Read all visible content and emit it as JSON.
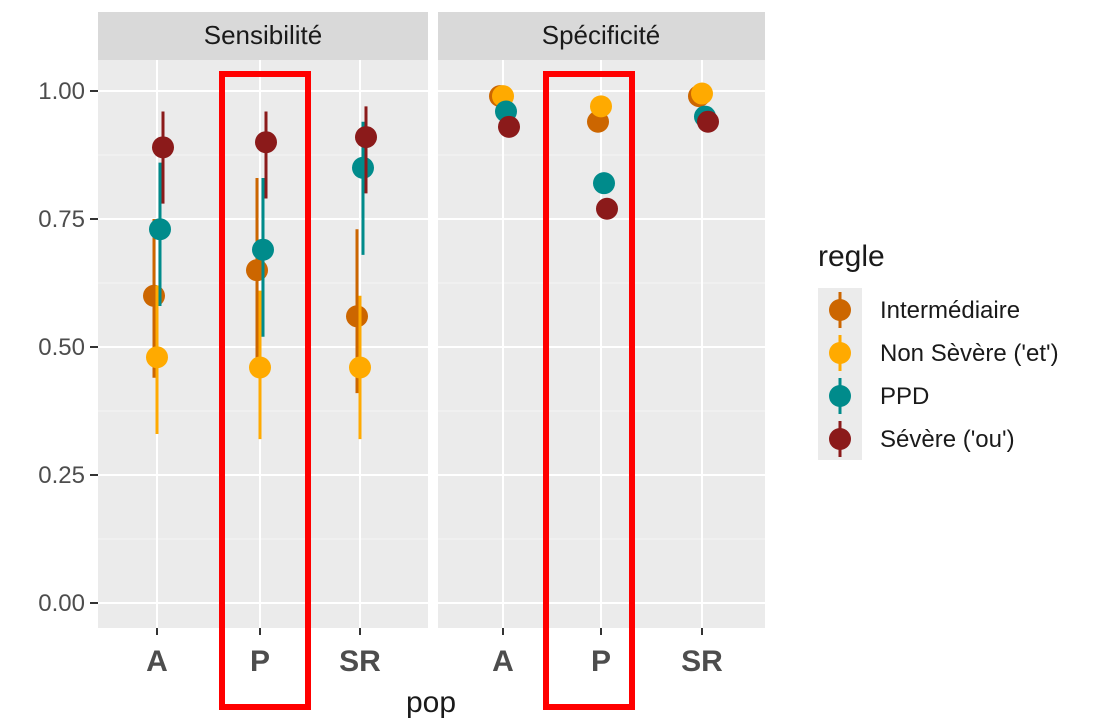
{
  "chart_data": {
    "type": "scatter",
    "facets": [
      "Sensibilité",
      "Spécificité"
    ],
    "categories": [
      "A",
      "P",
      "SR"
    ],
    "xlabel": "pop",
    "ylim": [
      0,
      1.1
    ],
    "yticks": [
      "0.00",
      "0.25",
      "0.50",
      "0.75",
      "1.00"
    ],
    "legend": {
      "title": "regle",
      "placement": "right"
    },
    "grid": true,
    "highlight": {
      "category": "P",
      "color": "#ff0000"
    },
    "series": [
      {
        "name": "Intermédiaire",
        "color": "#cc6600",
        "points": {
          "Sensibilité": [
            {
              "x": "A",
              "y": 0.6,
              "lo": 0.44,
              "hi": 0.75
            },
            {
              "x": "P",
              "y": 0.65,
              "lo": 0.46,
              "hi": 0.83
            },
            {
              "x": "SR",
              "y": 0.56,
              "lo": 0.41,
              "hi": 0.73
            }
          ],
          "Spécificité": [
            {
              "x": "A",
              "y": 0.99,
              "lo": 0.98,
              "hi": 1.0
            },
            {
              "x": "P",
              "y": 0.94,
              "lo": 0.92,
              "hi": 0.95
            },
            {
              "x": "SR",
              "y": 0.99,
              "lo": 0.98,
              "hi": 1.0
            }
          ]
        }
      },
      {
        "name": "Non Sèvère ('et')",
        "color": "#ffaa00",
        "points": {
          "Sensibilité": [
            {
              "x": "A",
              "y": 0.48,
              "lo": 0.33,
              "hi": 0.62
            },
            {
              "x": "P",
              "y": 0.46,
              "lo": 0.32,
              "hi": 0.61
            },
            {
              "x": "SR",
              "y": 0.46,
              "lo": 0.32,
              "hi": 0.6
            }
          ],
          "Spécificité": [
            {
              "x": "A",
              "y": 0.99,
              "lo": 0.98,
              "hi": 1.0
            },
            {
              "x": "P",
              "y": 0.97,
              "lo": 0.96,
              "hi": 0.98
            },
            {
              "x": "SR",
              "y": 0.995,
              "lo": 0.99,
              "hi": 1.0
            }
          ]
        }
      },
      {
        "name": "PPD",
        "color": "#008b8b",
        "points": {
          "Sensibilité": [
            {
              "x": "A",
              "y": 0.73,
              "lo": 0.58,
              "hi": 0.86
            },
            {
              "x": "P",
              "y": 0.69,
              "lo": 0.52,
              "hi": 0.83
            },
            {
              "x": "SR",
              "y": 0.85,
              "lo": 0.68,
              "hi": 0.94
            }
          ],
          "Spécificité": [
            {
              "x": "A",
              "y": 0.96,
              "lo": 0.94,
              "hi": 0.98
            },
            {
              "x": "P",
              "y": 0.82,
              "lo": 0.8,
              "hi": 0.83
            },
            {
              "x": "SR",
              "y": 0.95,
              "lo": 0.93,
              "hi": 0.97
            }
          ]
        }
      },
      {
        "name": "Sévère ('ou')",
        "color": "#8b1a1a",
        "points": {
          "Sensibilité": [
            {
              "x": "A",
              "y": 0.89,
              "lo": 0.78,
              "hi": 0.96
            },
            {
              "x": "P",
              "y": 0.9,
              "lo": 0.79,
              "hi": 0.96
            },
            {
              "x": "SR",
              "y": 0.91,
              "lo": 0.8,
              "hi": 0.97
            }
          ],
          "Spécificité": [
            {
              "x": "A",
              "y": 0.93,
              "lo": 0.91,
              "hi": 0.94
            },
            {
              "x": "P",
              "y": 0.77,
              "lo": 0.75,
              "hi": 0.78
            },
            {
              "x": "SR",
              "y": 0.94,
              "lo": 0.92,
              "hi": 0.95
            }
          ]
        }
      }
    ]
  }
}
